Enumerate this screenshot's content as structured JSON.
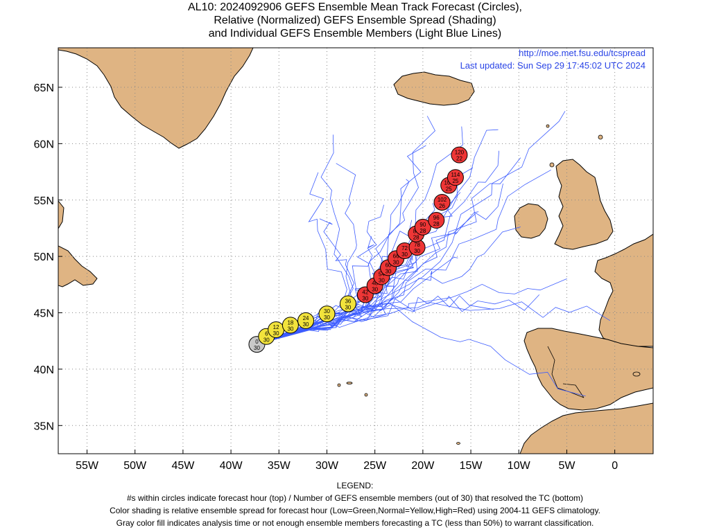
{
  "title": {
    "line1": "AL10: 2024092906 GEFS Ensemble Mean Track Forecast (Circles),",
    "line2": "Relative (Normalized) GEFS Ensemble Spread (Shading)",
    "line3": "and Individual GEFS Ensemble Members (Light Blue Lines)"
  },
  "credit": {
    "url": "http://moe.met.fsu.edu/tcspread",
    "updated": "Last updated: Sun Sep 29 17:45:02 UTC 2024"
  },
  "axes": {
    "lat_ticks": [
      "65N",
      "60N",
      "55N",
      "50N",
      "45N",
      "40N",
      "35N"
    ],
    "lon_ticks": [
      "55W",
      "50W",
      "45W",
      "40W",
      "35W",
      "30W",
      "25W",
      "20W",
      "15W",
      "10W",
      "5W",
      "0"
    ],
    "lon_range": [
      -58,
      4
    ],
    "lat_range": [
      32.5,
      68.5
    ]
  },
  "legend": {
    "heading": "LEGEND:",
    "line1": "#s within circles indicate forecast hour (top) / Number of GEFS ensemble members (out of 30) that resolved the TC (bottom)",
    "line2": "Color shading is relative ensemble spread for forecast hour (Low=Green,Normal=Yellow,High=Red) using 2004-11 GEFS climatology.",
    "line3": "Gray color fill indicates analysis time or not enough ensemble members forecasting a TC (less than 50%) to warrant classification."
  },
  "colors": {
    "land": "#dfb483",
    "member_line": "#3c5cff",
    "gray": "#c8c8c8",
    "yellow": "#f2e33c",
    "red": "#ee3636",
    "credit_text": "#2a44e6"
  },
  "forecast_points": [
    {
      "hour": "0",
      "members": "30",
      "lon": -37.3,
      "lat": 42.2,
      "spread": "gray"
    },
    {
      "hour": "6",
      "members": "30",
      "lon": -36.3,
      "lat": 42.9,
      "spread": "yellow"
    },
    {
      "hour": "12",
      "members": "30",
      "lon": -35.3,
      "lat": 43.5,
      "spread": "yellow"
    },
    {
      "hour": "18",
      "members": "30",
      "lon": -33.8,
      "lat": 43.9,
      "spread": "yellow"
    },
    {
      "hour": "24",
      "members": "30",
      "lon": -32.2,
      "lat": 44.3,
      "spread": "yellow"
    },
    {
      "hour": "30",
      "members": "30",
      "lon": -30.0,
      "lat": 44.9,
      "spread": "yellow"
    },
    {
      "hour": "36",
      "members": "30",
      "lon": -27.8,
      "lat": 45.8,
      "spread": "yellow"
    },
    {
      "hour": "42",
      "members": "30",
      "lon": -26.0,
      "lat": 46.6,
      "spread": "red"
    },
    {
      "hour": "48",
      "members": "30",
      "lon": -25.0,
      "lat": 47.4,
      "spread": "red"
    },
    {
      "hour": "54",
      "members": "30",
      "lon": -24.3,
      "lat": 48.2,
      "spread": "red"
    },
    {
      "hour": "60",
      "members": "30",
      "lon": -23.6,
      "lat": 49.0,
      "spread": "red"
    },
    {
      "hour": "66",
      "members": "30",
      "lon": -22.8,
      "lat": 49.8,
      "spread": "red"
    },
    {
      "hour": "72",
      "members": "30",
      "lon": -21.9,
      "lat": 50.5,
      "spread": "red"
    },
    {
      "hour": "78",
      "members": "30",
      "lon": -20.6,
      "lat": 50.8,
      "spread": "red"
    },
    {
      "hour": "84",
      "members": "28",
      "lon": -20.7,
      "lat": 52.0,
      "spread": "red"
    },
    {
      "hour": "90",
      "members": "28",
      "lon": -20.0,
      "lat": 52.6,
      "spread": "red"
    },
    {
      "hour": "96",
      "members": "28",
      "lon": -18.6,
      "lat": 53.2,
      "spread": "red"
    },
    {
      "hour": "102",
      "members": "26",
      "lon": -18.0,
      "lat": 54.8,
      "spread": "red"
    },
    {
      "hour": "108",
      "members": "25",
      "lon": -17.3,
      "lat": 56.3,
      "spread": "red"
    },
    {
      "hour": "114",
      "members": "25",
      "lon": -16.6,
      "lat": 57.0,
      "spread": "red"
    },
    {
      "hour": "120",
      "members": "22",
      "lon": -16.2,
      "lat": 59.0,
      "spread": "red"
    }
  ]
}
